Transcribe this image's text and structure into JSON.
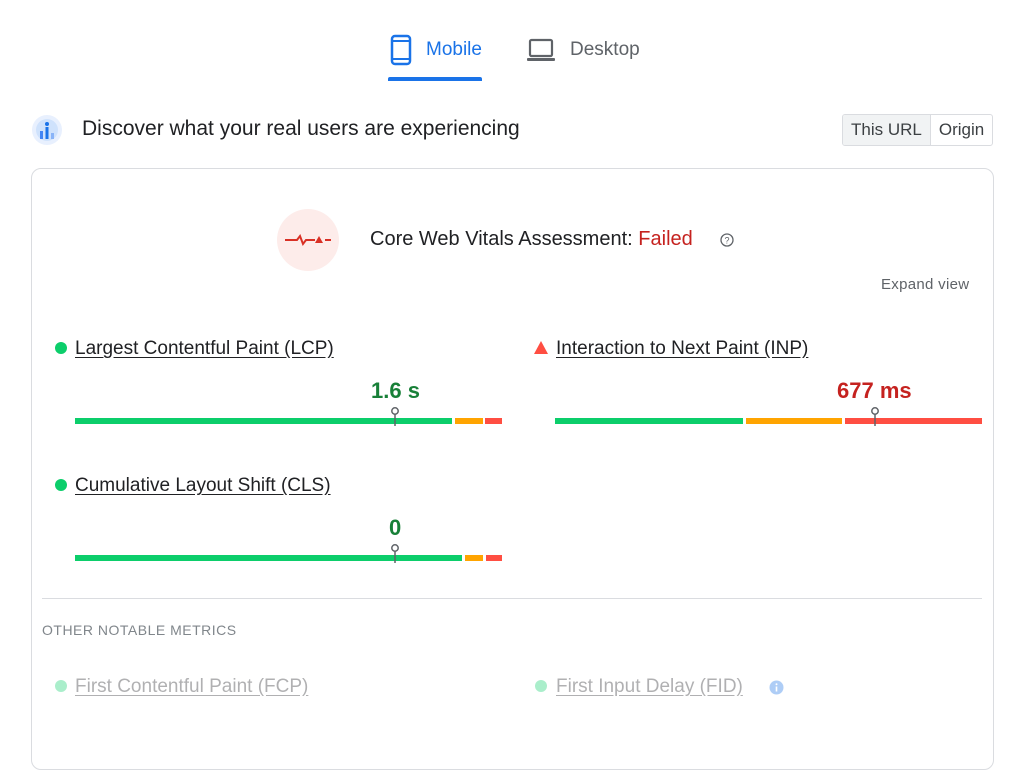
{
  "tabs": [
    {
      "label": "Mobile",
      "icon": "phone-icon",
      "active": true
    },
    {
      "label": "Desktop",
      "icon": "laptop-icon",
      "active": false
    }
  ],
  "discover": {
    "title": "Discover what your real users are experiencing",
    "icon": "crux-globe-icon",
    "toggle": [
      "This URL",
      "Origin"
    ],
    "toggle_selected": "This URL"
  },
  "assessment": {
    "label": "Core Web Vitals Assessment:",
    "status": "Failed",
    "expand": "Expand view"
  },
  "metrics": [
    {
      "name": "Largest Contentful Paint (LCP)",
      "value": "1.6 s",
      "rating": "good",
      "distribution_pct": {
        "good": 88,
        "ni": 7,
        "poor": 5
      },
      "marker_pct": 75
    },
    {
      "name": "Interaction to Next Paint (INP)",
      "value": "677 ms",
      "rating": "poor",
      "distribution_pct": {
        "good": 44,
        "ni": 23,
        "poor": 33
      },
      "marker_pct": 75
    },
    {
      "name": "Cumulative Layout Shift (CLS)",
      "value": "0",
      "rating": "good",
      "distribution_pct": {
        "good": 91,
        "ni": 5,
        "poor": 4
      },
      "marker_pct": 75
    }
  ],
  "other": {
    "heading": "OTHER NOTABLE METRICS",
    "items": [
      {
        "name": "First Contentful Paint (FCP)",
        "rating": "good"
      },
      {
        "name": "First Input Delay (FID)",
        "rating": "good",
        "has_info_icon": true
      }
    ]
  },
  "colors": {
    "good": "#0cce6b",
    "needs_improvement": "#ffa400",
    "poor": "#ff4e42",
    "accent": "#1a73e8"
  }
}
